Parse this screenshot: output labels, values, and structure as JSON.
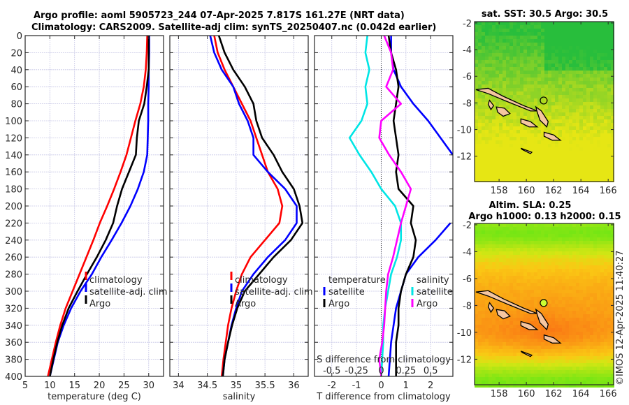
{
  "header": {
    "line1": "Argo profile: aoml 5905723_244 07-Apr-2025 7.817S 161.27E (NRT data)",
    "line2": "Climatology: CARS2009. Satellite-adj clim: synTS_20250407.nc (0.042d earlier)"
  },
  "credit": "©IMOS 12-Apr-2025 11:40:27",
  "colors": {
    "climatology": "#ff0000",
    "satellite": "#0000ff",
    "argo": "#000000",
    "s_satellite": "#00e5e5",
    "s_argo": "#ff00ff"
  },
  "chart_data": [
    {
      "type": "line",
      "id": "temperature",
      "xlabel": "temperature (deg C)",
      "ylabel": "",
      "xlim": [
        5,
        33
      ],
      "ylim": [
        400,
        0
      ],
      "xticks": [
        5,
        10,
        15,
        20,
        25,
        30
      ],
      "yticks": [
        0,
        20,
        40,
        60,
        80,
        100,
        120,
        140,
        160,
        180,
        200,
        220,
        240,
        260,
        280,
        300,
        320,
        340,
        360,
        380,
        400
      ],
      "grid": true,
      "legend": {
        "placement": "middle-right",
        "entries": [
          "climatology",
          "satellite-adj. clim",
          "Argo"
        ]
      },
      "depth": [
        0,
        20,
        40,
        60,
        80,
        100,
        120,
        140,
        160,
        180,
        200,
        220,
        240,
        260,
        280,
        300,
        320,
        340,
        360,
        380,
        400
      ],
      "series": [
        {
          "name": "climatology",
          "color": "#ff0000",
          "values": [
            29.7,
            29.6,
            29.4,
            29.0,
            28.3,
            27.3,
            26.4,
            25.5,
            24.3,
            23.0,
            21.6,
            20.1,
            18.8,
            17.4,
            16.0,
            14.6,
            13.2,
            12.1,
            11.2,
            10.4,
            9.6
          ]
        },
        {
          "name": "satellite-adj. clim",
          "color": "#0000ff",
          "values": [
            30.1,
            30.1,
            30.0,
            30.0,
            29.9,
            29.9,
            29.8,
            29.7,
            29.0,
            27.8,
            26.3,
            24.5,
            22.5,
            20.4,
            18.5,
            16.2,
            14.3,
            12.8,
            11.6,
            10.8,
            10.0
          ]
        },
        {
          "name": "Argo",
          "color": "#000000",
          "values": [
            30.0,
            30.0,
            30.0,
            29.6,
            29.1,
            28.0,
            27.6,
            27.4,
            26.0,
            24.6,
            23.6,
            22.8,
            21.3,
            19.5,
            17.5,
            15.6,
            13.8,
            12.5,
            11.5,
            10.7,
            10.0
          ]
        }
      ]
    },
    {
      "type": "line",
      "id": "salinity",
      "xlabel": "salinity",
      "xlim": [
        33.85,
        36.25
      ],
      "ylim": [
        400,
        0
      ],
      "xticks": [
        34,
        34.5,
        35,
        35.5,
        36
      ],
      "grid": true,
      "legend": {
        "placement": "middle-right",
        "entries": [
          "climatology",
          "satellite-adj. clim",
          "Argo"
        ]
      },
      "depth": [
        0,
        20,
        40,
        60,
        80,
        100,
        120,
        140,
        160,
        180,
        200,
        220,
        240,
        260,
        280,
        300,
        320,
        340,
        360,
        380,
        400
      ],
      "series": [
        {
          "name": "climatology",
          "color": "#ff0000",
          "values": [
            34.62,
            34.68,
            34.8,
            34.95,
            35.1,
            35.25,
            35.35,
            35.45,
            35.55,
            35.72,
            35.8,
            35.75,
            35.5,
            35.25,
            35.1,
            35.0,
            34.92,
            34.86,
            34.82,
            34.78,
            34.75
          ]
        },
        {
          "name": "satellite-adj. clim",
          "color": "#0000ff",
          "values": [
            34.55,
            34.62,
            34.75,
            34.95,
            35.05,
            35.2,
            35.3,
            35.3,
            35.55,
            35.85,
            36.05,
            36.05,
            35.85,
            35.55,
            35.3,
            35.1,
            35.0,
            34.92,
            34.86,
            34.8,
            34.77
          ]
        },
        {
          "name": "Argo",
          "color": "#000000",
          "values": [
            34.7,
            34.8,
            34.95,
            35.15,
            35.3,
            35.35,
            35.45,
            35.65,
            35.8,
            36.0,
            36.1,
            36.15,
            35.95,
            35.65,
            35.4,
            35.15,
            35.02,
            34.93,
            34.86,
            34.8,
            34.77
          ]
        }
      ]
    },
    {
      "type": "line",
      "id": "difference",
      "xlabel": "T difference from climatology",
      "xlabel2": "S difference from climatology",
      "xlim": [
        -2.7,
        2.9
      ],
      "ylim": [
        400,
        0
      ],
      "xticks": [
        -2,
        -1,
        0,
        1,
        2
      ],
      "xticks2": [
        -0.5,
        -0.25,
        0,
        0.25,
        0.5
      ],
      "grid": true,
      "legend": {
        "placement": "middle",
        "groups": [
          {
            "title": "temperature",
            "entries": [
              "satellite",
              "Argo"
            ]
          },
          {
            "title": "salinity",
            "entries": [
              "satellite",
              "Argo"
            ]
          }
        ]
      },
      "depth": [
        0,
        20,
        40,
        60,
        80,
        100,
        120,
        140,
        160,
        180,
        200,
        220,
        240,
        260,
        280,
        300,
        320,
        340,
        360,
        380,
        400
      ],
      "series": [
        {
          "name": "temperature satellite",
          "color": "#0000ff",
          "values": [
            0.4,
            0.4,
            0.5,
            0.8,
            1.3,
            1.9,
            2.4,
            2.9,
            null,
            null,
            null,
            2.8,
            2.2,
            1.5,
            1.0,
            0.8,
            0.6,
            0.5,
            0.4,
            0.35,
            0.3
          ]
        },
        {
          "name": "temperature Argo",
          "color": "#000000",
          "values": [
            0.3,
            0.4,
            0.6,
            0.7,
            0.6,
            0.5,
            0.6,
            0.7,
            0.6,
            0.7,
            1.3,
            1.2,
            1.4,
            1.3,
            1.0,
            0.8,
            0.7,
            0.7,
            0.6,
            0.6,
            0.6
          ]
        },
        {
          "name": "salinity satellite",
          "color": "#00e5e5",
          "values": [
            -0.14,
            -0.16,
            -0.12,
            -0.16,
            -0.14,
            -0.2,
            -0.32,
            -0.22,
            -0.1,
            0.0,
            0.14,
            0.2,
            0.2,
            0.16,
            0.1,
            0.07,
            0.04,
            0.02,
            0.02,
            0.01,
            0.0
          ]
        },
        {
          "name": "salinity Argo",
          "color": "#ff00ff",
          "values": [
            0.03,
            0.1,
            0.12,
            0.05,
            0.2,
            0.0,
            -0.02,
            0.08,
            0.2,
            0.3,
            0.25,
            0.2,
            0.16,
            0.12,
            0.07,
            0.05,
            0.04,
            0.03,
            0.01,
            -0.02,
            0.0
          ]
        }
      ]
    },
    {
      "type": "heatmap",
      "id": "sst-map",
      "title": "sat. SST: 30.5 Argo: 30.5",
      "xlim": [
        156.2,
        166.4
      ],
      "ylim": [
        -13.9,
        -1.9
      ],
      "xticks": [
        158,
        160,
        162,
        164,
        166
      ],
      "yticks": [
        -2,
        -4,
        -6,
        -8,
        -10,
        -12
      ],
      "marker": {
        "lon": 161.27,
        "lat": -7.817
      },
      "colormap": "green-yellow"
    },
    {
      "type": "heatmap",
      "id": "sla-map",
      "title": "Altim. SLA: 0.25",
      "subtitle": "Argo h1000: 0.13 h2000: 0.15",
      "xlim": [
        156.2,
        166.4
      ],
      "ylim": [
        -13.9,
        -1.9
      ],
      "xticks": [
        158,
        160,
        162,
        164,
        166
      ],
      "yticks": [
        -2,
        -4,
        -6,
        -8,
        -10,
        -12
      ],
      "marker": {
        "lon": 161.27,
        "lat": -7.817
      },
      "colormap": "green-yellow-orange"
    }
  ]
}
